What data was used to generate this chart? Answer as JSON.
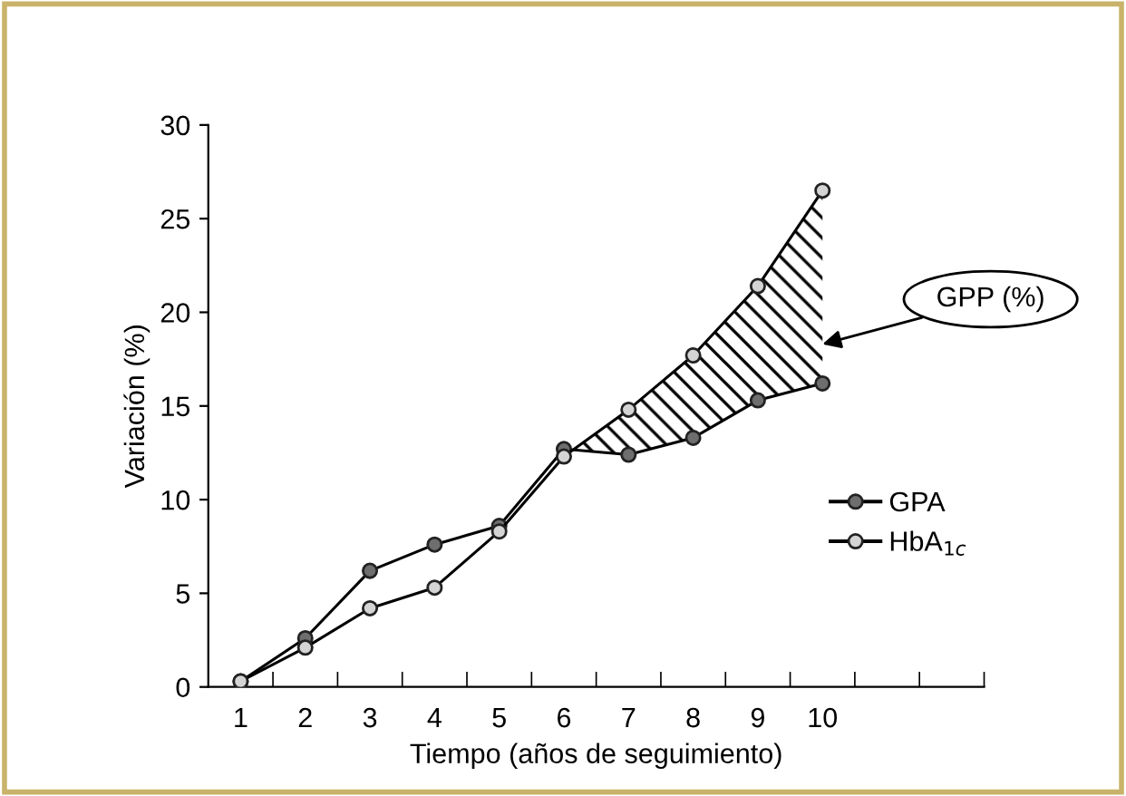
{
  "chart_data": {
    "type": "line",
    "xlabel": "Tiempo (años de seguimiento)",
    "ylabel": "Variación (%)",
    "categories": [
      "1",
      "2",
      "3",
      "4",
      "5",
      "6",
      "7",
      "8",
      "9",
      "10",
      null,
      null
    ],
    "series": [
      {
        "name": "GPA",
        "color": "#000000",
        "colors": [
          "#6e6e6e",
          "#6e6e6e",
          "#6e6e6e",
          "#6e6e6e",
          "#6e6e6e",
          "#6e6e6e",
          "#6e6e6e",
          "#6e6e6e",
          "#6e6e6e",
          "#6e6e6e",
          null,
          null
        ],
        "values": [
          0.3,
          2.6,
          6.2,
          7.6,
          8.6,
          12.7,
          12.4,
          13.3,
          15.3,
          16.2,
          null,
          null
        ]
      },
      {
        "name": "HbA$_{1c}$",
        "color": "#000000",
        "colors": [
          "#d4d4d4",
          "#d4d4d4",
          "#d4d4d4",
          "#d4d4d4",
          "#d4d4d4",
          "#d4d4d4",
          "#d4d4d4",
          "#d4d4d4",
          "#d4d4d4",
          "#d4d4d4",
          null,
          null
        ],
        "values": [
          0.3,
          2.1,
          4.2,
          5.3,
          8.3,
          12.3,
          14.8,
          17.7,
          21.4,
          26.5,
          null,
          null
        ],
        "lower": [
          null,
          null,
          null,
          null,
          null,
          12.7,
          12.4,
          13.3,
          15.3,
          16.2,
          null,
          null
        ],
        "upper": [
          null,
          null,
          null,
          null,
          null,
          12.3,
          14.8,
          17.7,
          21.4,
          26.5,
          null,
          null
        ]
      }
    ],
    "ylim": [
      0,
      30
    ],
    "yticks": [
      0,
      5,
      10,
      15,
      20,
      25,
      30
    ],
    "annotations": [
      {
        "text": "GPP (%)",
        "x": "10",
        "y": 18.3
      }
    ],
    "legend": "right",
    "grid": false,
    "marker": "circle",
    "line_style": "solid"
  }
}
